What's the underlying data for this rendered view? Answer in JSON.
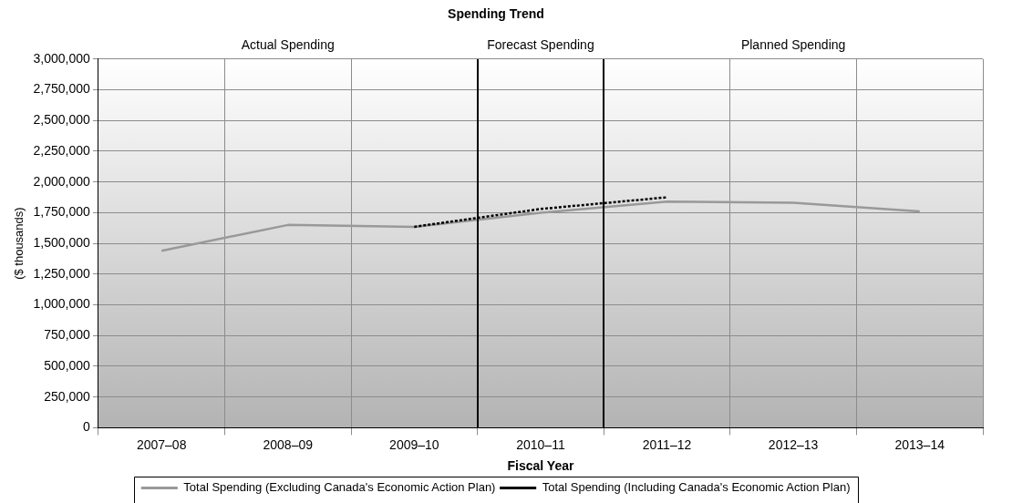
{
  "chart_data": {
    "type": "line",
    "title": "Spending Trend",
    "xlabel": "Fiscal Year",
    "ylabel": "($ thousands)",
    "categories": [
      "2007–08",
      "2008–09",
      "2009–10",
      "2010–11",
      "2011–12",
      "2012–13",
      "2013–14"
    ],
    "series": [
      {
        "name": "Total Spending (Excluding Canada's Economic Action Plan)",
        "color": "#999999",
        "values": [
          1440000,
          1650000,
          1635000,
          1750000,
          1840000,
          1830000,
          1760000
        ],
        "line_style": "solid"
      },
      {
        "name": "Total Spending (Including Canada's Economic Action Plan)",
        "color": "#000000",
        "values": [
          null,
          null,
          1635000,
          1780000,
          1875000,
          null,
          null
        ],
        "line_style": "dotted"
      }
    ],
    "ylim": [
      0,
      3000000
    ],
    "yticks": [
      {
        "value": 0,
        "label": "0"
      },
      {
        "value": 250000,
        "label": "250,000"
      },
      {
        "value": 500000,
        "label": "500,000"
      },
      {
        "value": 750000,
        "label": "750,000"
      },
      {
        "value": 1000000,
        "label": "1,000,000"
      },
      {
        "value": 1250000,
        "label": "1,250,000"
      },
      {
        "value": 1500000,
        "label": "1,500,000"
      },
      {
        "value": 1750000,
        "label": "1,750,000"
      },
      {
        "value": 2000000,
        "label": "2,000,000"
      },
      {
        "value": 2250000,
        "label": "2,250,000"
      },
      {
        "value": 2500000,
        "label": "2,500,000"
      },
      {
        "value": 2750000,
        "label": "2,750,000"
      },
      {
        "value": 3000000,
        "label": "3,000,000"
      }
    ],
    "annotations": [
      "Actual Spending",
      "Forecast Spending",
      "Planned Spending"
    ],
    "grid": true,
    "legend": "bottom",
    "marker": "none"
  }
}
